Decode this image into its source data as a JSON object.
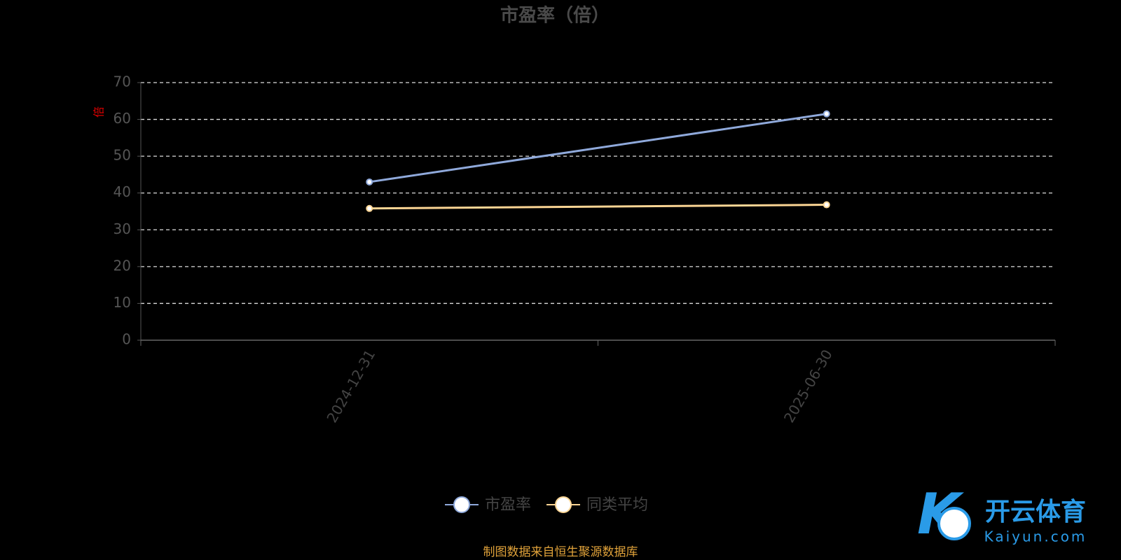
{
  "chart_data": {
    "type": "line",
    "title": "市盈率（倍）",
    "y_label": "倍",
    "categories": [
      "2024-12-31",
      "2025-06-30"
    ],
    "series": [
      {
        "name": "市盈率",
        "color": "#8fa9db",
        "values": [
          43.0,
          61.5
        ]
      },
      {
        "name": "同类平均",
        "color": "#fbd594",
        "values": [
          35.8,
          36.8
        ]
      }
    ],
    "ylim": [
      0,
      70
    ],
    "yticks": [
      0,
      10,
      20,
      30,
      40,
      50,
      60,
      70
    ],
    "grid": true,
    "legend": "bottom",
    "source": "制图数据来自恒生聚源数据库"
  },
  "watermark": {
    "brand": "开云体育",
    "site": "Kaiyun.com"
  }
}
